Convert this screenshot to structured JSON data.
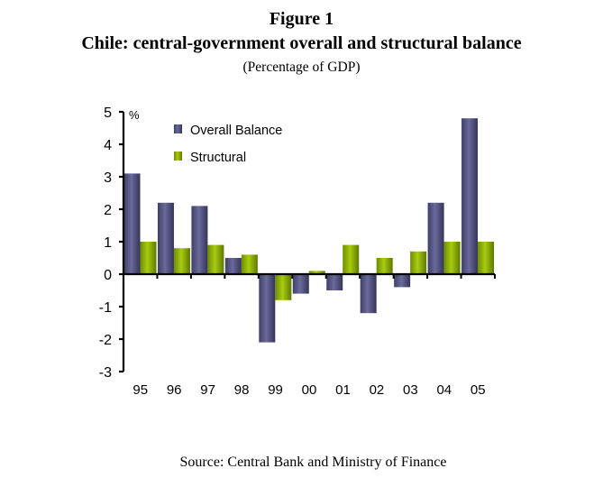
{
  "figure": {
    "label": "Figure 1",
    "title": "Chile: central-government overall and structural balance",
    "subtitle": "(Percentage of GDP)",
    "source": "Source: Central Bank and Ministry of Finance"
  },
  "chart_data": {
    "type": "bar",
    "title": "Chile: central-government overall and structural balance",
    "subtitle": "(Percentage of GDP)",
    "xlabel": "",
    "ylabel": "%",
    "ylim": [
      -3,
      5
    ],
    "yticks": [
      "5",
      "4",
      "3",
      "2",
      "1",
      "0",
      "-1",
      "-2",
      "-3"
    ],
    "ytick_values": [
      5,
      4,
      3,
      2,
      1,
      0,
      -1,
      -2,
      -3
    ],
    "categories": [
      "95",
      "96",
      "97",
      "98",
      "99",
      "00",
      "01",
      "02",
      "03",
      "04",
      "05"
    ],
    "series": [
      {
        "name": "Overall Balance",
        "color": "#52527f",
        "values": [
          3.1,
          2.2,
          2.1,
          0.5,
          -2.1,
          -0.6,
          -0.5,
          -1.2,
          -0.4,
          2.2,
          4.8
        ]
      },
      {
        "name": "Structural",
        "color": "#8fb300",
        "values": [
          1.0,
          0.8,
          0.9,
          0.6,
          -0.8,
          0.1,
          0.9,
          0.5,
          0.7,
          1.0,
          1.0
        ]
      }
    ],
    "legend": {
      "placement": "top-left-inside",
      "entries": [
        "Overall Balance",
        "Structural"
      ]
    },
    "grid": false
  }
}
